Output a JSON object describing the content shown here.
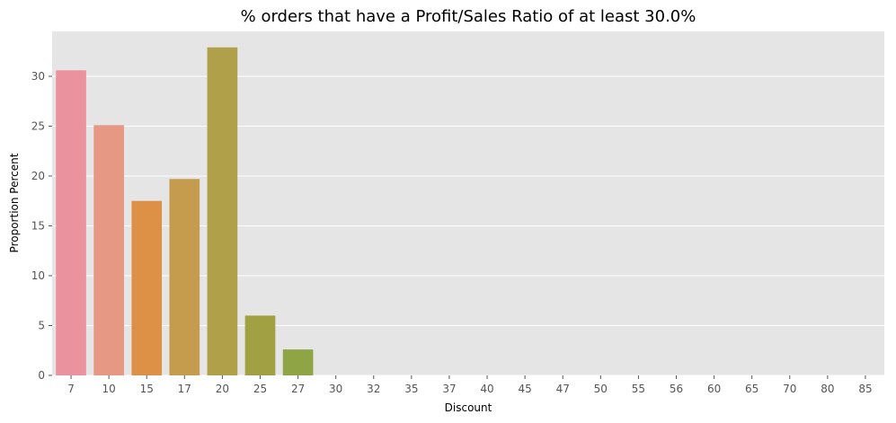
{
  "chart_data": {
    "type": "bar",
    "title": "% orders that have a Profit/Sales Ratio of at least 30.0%",
    "xlabel": "Discount",
    "ylabel": "Proportion Percent",
    "categories": [
      "7",
      "10",
      "15",
      "17",
      "20",
      "25",
      "27",
      "30",
      "32",
      "35",
      "37",
      "40",
      "45",
      "47",
      "50",
      "55",
      "56",
      "60",
      "65",
      "70",
      "80",
      "85"
    ],
    "values": [
      30.6,
      25.1,
      17.5,
      19.7,
      32.9,
      6.0,
      2.6,
      0,
      0,
      0,
      0,
      0,
      0,
      0,
      0,
      0,
      0,
      0,
      0,
      0,
      0,
      0
    ],
    "ylim": [
      0,
      34.5
    ],
    "yticks": [
      0,
      5,
      10,
      15,
      20,
      25,
      30
    ],
    "grid": true,
    "colors": [
      "#ea929e",
      "#e79884",
      "#dd9146",
      "#c59c4d",
      "#b0a04a",
      "#a1a144",
      "#8ea445"
    ],
    "background": "#e5e5e5"
  }
}
